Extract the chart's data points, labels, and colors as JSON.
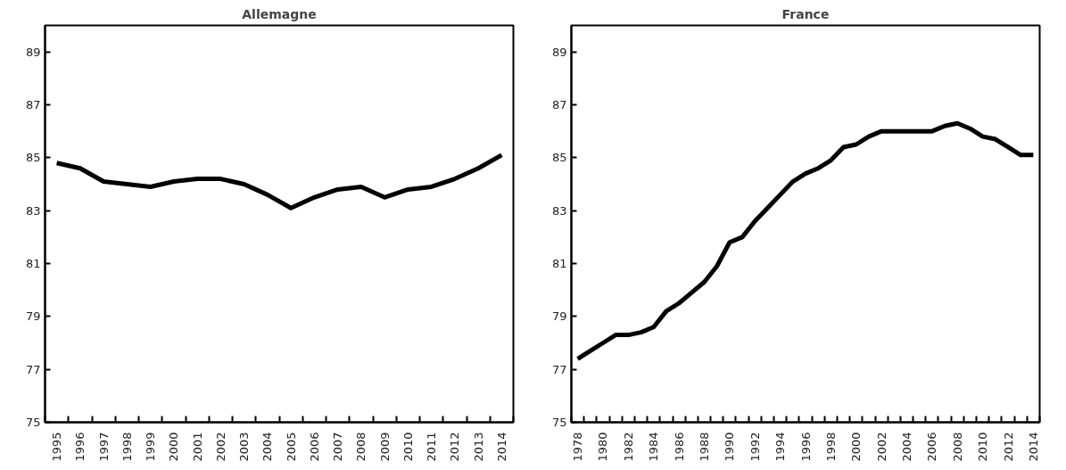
{
  "chart_data": [
    {
      "type": "line",
      "title": "Allemagne",
      "categories": [
        "1995",
        "1996",
        "1997",
        "1998",
        "1999",
        "2000",
        "2001",
        "2002",
        "2003",
        "2004",
        "2005",
        "2006",
        "2007",
        "2008",
        "2009",
        "2010",
        "2011",
        "2012",
        "2013",
        "2014"
      ],
      "series": [
        {
          "color": "#000000",
          "values": [
            84.8,
            84.6,
            84.1,
            84.0,
            83.9,
            84.1,
            84.2,
            84.2,
            84.0,
            83.6,
            83.1,
            83.5,
            83.8,
            83.9,
            83.5,
            83.8,
            83.9,
            84.2,
            84.6,
            85.1
          ]
        }
      ],
      "ylim": [
        75,
        90
      ],
      "yticks": [
        75,
        77,
        79,
        81,
        83,
        85,
        87,
        89
      ],
      "grid": false,
      "marker": "none",
      "line_style": "solid"
    },
    {
      "type": "line",
      "title": "France",
      "categories": [
        "1978",
        null,
        "1980",
        null,
        "1982",
        null,
        "1984",
        null,
        "1986",
        null,
        "1988",
        null,
        "1990",
        null,
        "1992",
        null,
        "1994",
        null,
        "1996",
        null,
        "1998",
        null,
        "2000",
        null,
        "2002",
        null,
        "2004",
        null,
        "2006",
        null,
        "2008",
        null,
        "2010",
        null,
        "2012",
        null,
        "2014"
      ],
      "series": [
        {
          "color": "#000000",
          "values": [
            77.4,
            77.7,
            78.0,
            78.3,
            78.3,
            78.4,
            78.6,
            79.2,
            79.5,
            79.9,
            80.3,
            80.9,
            81.8,
            82.0,
            82.6,
            83.1,
            83.6,
            84.1,
            84.4,
            84.6,
            84.9,
            85.4,
            85.5,
            85.8,
            86.0,
            86.0,
            86.0,
            86.0,
            86.0,
            86.2,
            86.3,
            86.1,
            85.8,
            85.7,
            85.4,
            85.1,
            85.1
          ]
        }
      ],
      "ylim": [
        75,
        90
      ],
      "yticks": [
        75,
        77,
        79,
        81,
        83,
        85,
        87,
        89
      ],
      "grid": false,
      "marker": "none",
      "line_style": "solid"
    }
  ]
}
